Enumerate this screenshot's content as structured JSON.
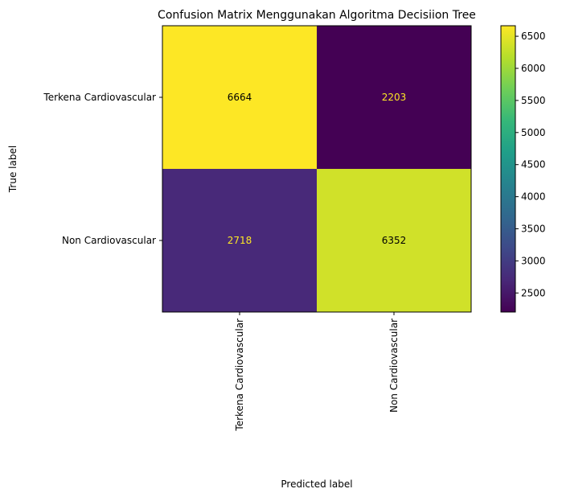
{
  "chart_data": {
    "type": "heatmap",
    "title": "Confusion Matrix Menggunakan Algoritma Decisiion Tree",
    "xlabel": "Predicted label",
    "ylabel": "True label",
    "x_categories": [
      "Terkena Cardiovascular",
      "Non Cardiovascular"
    ],
    "y_categories": [
      "Terkena Cardiovascular",
      "Non Cardiovascular"
    ],
    "matrix": [
      [
        6664,
        2203
      ],
      [
        2718,
        6352
      ]
    ],
    "colormap": "viridis",
    "colorbar": {
      "range": [
        2203,
        6664
      ],
      "ticks": [
        2500,
        3000,
        3500,
        4000,
        4500,
        5000,
        5500,
        6000,
        6500
      ]
    },
    "text_color_dark_cell": "#fde725",
    "text_color_light_cell": "#000000"
  }
}
